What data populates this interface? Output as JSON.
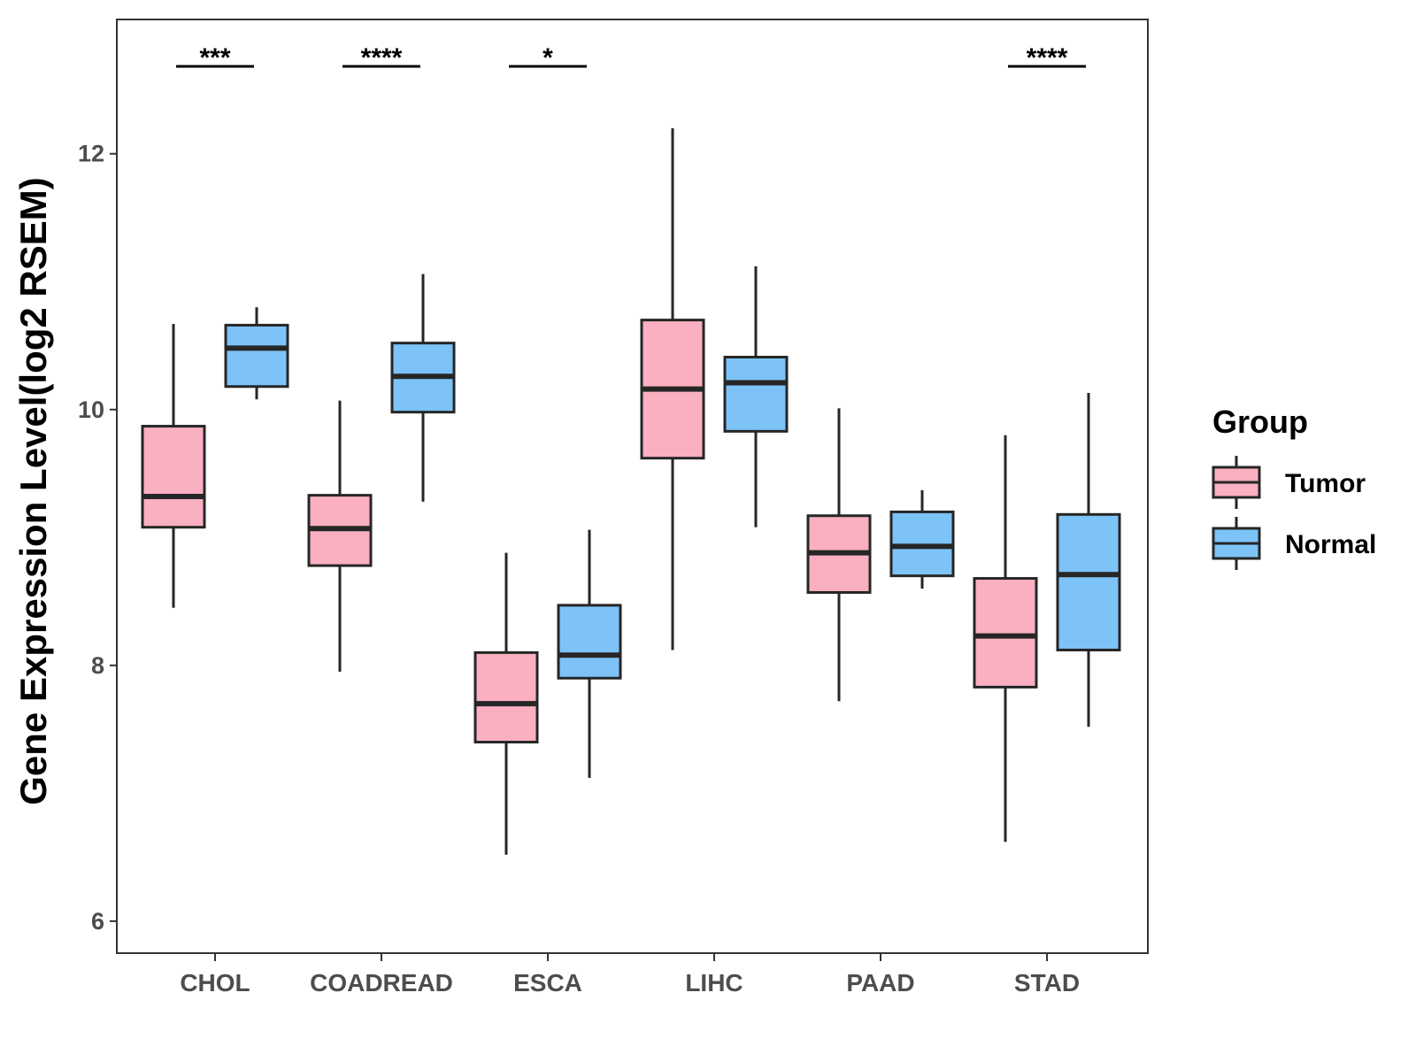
{
  "chart_data": {
    "type": "boxplot",
    "title": "",
    "xlabel": "",
    "ylabel": "Gene Expression Level(log2 RSEM)",
    "ylim": [
      5.75,
      13.05
    ],
    "yticks": [
      6,
      8,
      10,
      12
    ],
    "categories": [
      "CHOL",
      "COADREAD",
      "ESCA",
      "LIHC",
      "PAAD",
      "STAD"
    ],
    "legend": {
      "title": "Group",
      "position": "right"
    },
    "series": [
      {
        "name": "Tumor",
        "color": "#FAB0C0",
        "boxes": [
          {
            "min": 8.45,
            "q1": 9.08,
            "median": 9.32,
            "q3": 9.87,
            "max": 10.67
          },
          {
            "min": 7.95,
            "q1": 8.78,
            "median": 9.07,
            "q3": 9.33,
            "max": 10.07
          },
          {
            "min": 6.52,
            "q1": 7.4,
            "median": 7.7,
            "q3": 8.1,
            "max": 8.88
          },
          {
            "min": 8.12,
            "q1": 9.62,
            "median": 10.16,
            "q3": 10.7,
            "max": 12.2
          },
          {
            "min": 7.72,
            "q1": 8.57,
            "median": 8.88,
            "q3": 9.17,
            "max": 10.01
          },
          {
            "min": 6.62,
            "q1": 7.83,
            "median": 8.23,
            "q3": 8.68,
            "max": 9.8
          }
        ]
      },
      {
        "name": "Normal",
        "color": "#7DC3F8",
        "boxes": [
          {
            "min": 10.08,
            "q1": 10.18,
            "median": 10.48,
            "q3": 10.66,
            "max": 10.8
          },
          {
            "min": 9.28,
            "q1": 9.98,
            "median": 10.26,
            "q3": 10.52,
            "max": 11.06
          },
          {
            "min": 7.12,
            "q1": 7.9,
            "median": 8.08,
            "q3": 8.47,
            "max": 9.06
          },
          {
            "min": 9.08,
            "q1": 9.83,
            "median": 10.21,
            "q3": 10.41,
            "max": 11.12
          },
          {
            "min": 8.6,
            "q1": 8.7,
            "median": 8.93,
            "q3": 9.2,
            "max": 9.37
          },
          {
            "min": 7.52,
            "q1": 8.12,
            "median": 8.71,
            "q3": 9.18,
            "max": 10.13
          }
        ]
      }
    ],
    "significance": [
      {
        "category": "CHOL",
        "label": "***"
      },
      {
        "category": "COADREAD",
        "label": "****"
      },
      {
        "category": "ESCA",
        "label": "*"
      },
      {
        "category": "STAD",
        "label": "****"
      }
    ]
  }
}
